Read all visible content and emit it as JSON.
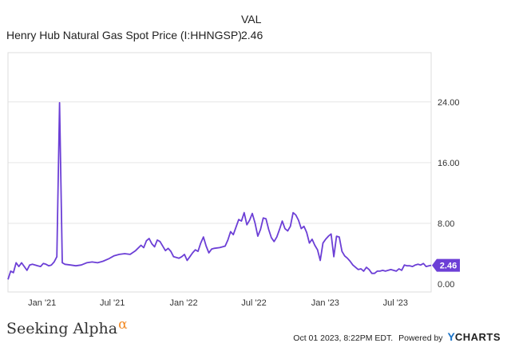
{
  "header": {
    "value_column_label": "VAL",
    "series_name": "Henry Hub Natural Gas Spot Price (I:HHNGSP)",
    "series_value": "2.46"
  },
  "footer": {
    "brand_left": "Seeking Alpha",
    "brand_left_symbol": "α",
    "timestamp": "Oct 01 2023, 8:22PM EDT.",
    "powered_by": "Powered by",
    "brand_right_mark": "Y",
    "brand_right": "CHARTS"
  },
  "colors": {
    "series": "#6c3fd6",
    "grid": "#e6e6e6",
    "plot_border": "#dddddd",
    "axis_text": "#333333",
    "last_value_tag": "#6c3fd6",
    "alpha_mark": "#f28c28",
    "ycharts_mark": "#1a73c8"
  },
  "chart_data": {
    "type": "line",
    "title": "",
    "ylabel": "",
    "xlabel": "",
    "ylim": [
      -1.05,
      30.5
    ],
    "xlim": [
      "2020-10-05",
      "2023-10-01"
    ],
    "yticks": [
      {
        "value": 0,
        "label": "0.00"
      },
      {
        "value": 8,
        "label": "8.00"
      },
      {
        "value": 16,
        "label": "16.00"
      },
      {
        "value": 24,
        "label": "24.00"
      }
    ],
    "xticks": [
      {
        "date": "2021-01-01",
        "label": "Jan '21"
      },
      {
        "date": "2021-07-01",
        "label": "Jul '21"
      },
      {
        "date": "2022-01-01",
        "label": "Jan '22"
      },
      {
        "date": "2022-07-01",
        "label": "Jul '22"
      },
      {
        "date": "2023-01-01",
        "label": "Jan '23"
      },
      {
        "date": "2023-07-01",
        "label": "Jul '23"
      }
    ],
    "grid": "horizontal",
    "last_value_label": "2.46",
    "series": [
      {
        "name": "Henry Hub Natural Gas Spot Price (I:HHNGSP)",
        "points": [
          [
            "2020-10-05",
            0.6
          ],
          [
            "2020-10-12",
            1.7
          ],
          [
            "2020-10-19",
            1.5
          ],
          [
            "2020-10-26",
            2.8
          ],
          [
            "2020-11-02",
            2.3
          ],
          [
            "2020-11-09",
            2.8
          ],
          [
            "2020-11-16",
            2.3
          ],
          [
            "2020-11-23",
            1.8
          ],
          [
            "2020-11-30",
            2.5
          ],
          [
            "2020-12-07",
            2.6
          ],
          [
            "2020-12-14",
            2.5
          ],
          [
            "2020-12-21",
            2.4
          ],
          [
            "2020-12-28",
            2.3
          ],
          [
            "2021-01-04",
            2.7
          ],
          [
            "2021-01-11",
            2.6
          ],
          [
            "2021-01-18",
            2.4
          ],
          [
            "2021-01-25",
            2.5
          ],
          [
            "2021-02-01",
            2.9
          ],
          [
            "2021-02-08",
            3.6
          ],
          [
            "2021-02-15",
            23.9
          ],
          [
            "2021-02-22",
            2.8
          ],
          [
            "2021-03-01",
            2.6
          ],
          [
            "2021-03-15",
            2.5
          ],
          [
            "2021-03-29",
            2.4
          ],
          [
            "2021-04-12",
            2.5
          ],
          [
            "2021-04-26",
            2.8
          ],
          [
            "2021-05-10",
            2.9
          ],
          [
            "2021-05-24",
            2.8
          ],
          [
            "2021-06-07",
            3.0
          ],
          [
            "2021-06-21",
            3.3
          ],
          [
            "2021-07-05",
            3.7
          ],
          [
            "2021-07-19",
            3.9
          ],
          [
            "2021-08-02",
            4.0
          ],
          [
            "2021-08-16",
            3.9
          ],
          [
            "2021-08-30",
            4.4
          ],
          [
            "2021-09-13",
            5.1
          ],
          [
            "2021-09-20",
            4.8
          ],
          [
            "2021-09-27",
            5.7
          ],
          [
            "2021-10-04",
            6.0
          ],
          [
            "2021-10-11",
            5.3
          ],
          [
            "2021-10-18",
            4.9
          ],
          [
            "2021-10-25",
            5.8
          ],
          [
            "2021-11-01",
            5.6
          ],
          [
            "2021-11-15",
            4.4
          ],
          [
            "2021-11-22",
            4.7
          ],
          [
            "2021-11-29",
            4.3
          ],
          [
            "2021-12-06",
            3.6
          ],
          [
            "2021-12-20",
            3.4
          ],
          [
            "2021-12-27",
            3.6
          ],
          [
            "2022-01-03",
            3.9
          ],
          [
            "2022-01-10",
            3.1
          ],
          [
            "2022-01-17",
            3.6
          ],
          [
            "2022-01-24",
            4.1
          ],
          [
            "2022-01-31",
            4.5
          ],
          [
            "2022-02-07",
            4.3
          ],
          [
            "2022-02-14",
            5.4
          ],
          [
            "2022-02-21",
            6.2
          ],
          [
            "2022-02-28",
            5.0
          ],
          [
            "2022-03-07",
            4.1
          ],
          [
            "2022-03-14",
            4.6
          ],
          [
            "2022-03-21",
            4.7
          ],
          [
            "2022-04-04",
            4.8
          ],
          [
            "2022-04-18",
            5.0
          ],
          [
            "2022-04-25",
            5.8
          ],
          [
            "2022-05-02",
            6.9
          ],
          [
            "2022-05-09",
            6.5
          ],
          [
            "2022-05-16",
            7.5
          ],
          [
            "2022-05-23",
            8.5
          ],
          [
            "2022-05-30",
            8.3
          ],
          [
            "2022-06-06",
            9.4
          ],
          [
            "2022-06-13",
            7.8
          ],
          [
            "2022-06-20",
            8.4
          ],
          [
            "2022-06-27",
            9.3
          ],
          [
            "2022-07-04",
            8.0
          ],
          [
            "2022-07-11",
            6.3
          ],
          [
            "2022-07-18",
            7.2
          ],
          [
            "2022-07-25",
            8.7
          ],
          [
            "2022-08-01",
            8.6
          ],
          [
            "2022-08-08",
            7.2
          ],
          [
            "2022-08-15",
            6.1
          ],
          [
            "2022-08-22",
            5.6
          ],
          [
            "2022-08-29",
            6.2
          ],
          [
            "2022-09-05",
            7.2
          ],
          [
            "2022-09-12",
            8.3
          ],
          [
            "2022-09-19",
            7.3
          ],
          [
            "2022-09-26",
            7.0
          ],
          [
            "2022-10-03",
            7.6
          ],
          [
            "2022-10-10",
            9.4
          ],
          [
            "2022-10-17",
            9.1
          ],
          [
            "2022-10-24",
            8.4
          ],
          [
            "2022-10-31",
            7.3
          ],
          [
            "2022-11-07",
            7.6
          ],
          [
            "2022-11-14",
            6.8
          ],
          [
            "2022-11-21",
            5.4
          ],
          [
            "2022-11-28",
            5.9
          ],
          [
            "2022-12-05",
            5.1
          ],
          [
            "2022-12-12",
            4.5
          ],
          [
            "2022-12-19",
            3.1
          ],
          [
            "2022-12-26",
            5.4
          ],
          [
            "2023-01-02",
            5.9
          ],
          [
            "2023-01-09",
            6.3
          ],
          [
            "2023-01-16",
            6.6
          ],
          [
            "2023-01-23",
            3.6
          ],
          [
            "2023-01-30",
            6.3
          ],
          [
            "2023-02-06",
            6.2
          ],
          [
            "2023-02-13",
            4.3
          ],
          [
            "2023-02-20",
            3.7
          ],
          [
            "2023-02-27",
            3.4
          ],
          [
            "2023-03-06",
            3.0
          ],
          [
            "2023-03-13",
            2.5
          ],
          [
            "2023-03-20",
            2.2
          ],
          [
            "2023-03-27",
            1.9
          ],
          [
            "2023-04-03",
            2.0
          ],
          [
            "2023-04-10",
            1.7
          ],
          [
            "2023-04-17",
            2.2
          ],
          [
            "2023-04-24",
            1.9
          ],
          [
            "2023-05-01",
            1.4
          ],
          [
            "2023-05-08",
            1.4
          ],
          [
            "2023-05-15",
            1.7
          ],
          [
            "2023-05-22",
            1.7
          ],
          [
            "2023-05-29",
            1.8
          ],
          [
            "2023-06-05",
            1.7
          ],
          [
            "2023-06-12",
            1.8
          ],
          [
            "2023-06-19",
            1.9
          ],
          [
            "2023-06-26",
            1.8
          ],
          [
            "2023-07-03",
            1.7
          ],
          [
            "2023-07-10",
            2.0
          ],
          [
            "2023-07-17",
            1.8
          ],
          [
            "2023-07-24",
            2.5
          ],
          [
            "2023-07-31",
            2.4
          ],
          [
            "2023-08-07",
            2.4
          ],
          [
            "2023-08-14",
            2.3
          ],
          [
            "2023-08-21",
            2.5
          ],
          [
            "2023-08-28",
            2.6
          ],
          [
            "2023-09-04",
            2.5
          ],
          [
            "2023-09-11",
            2.7
          ],
          [
            "2023-09-18",
            2.3
          ],
          [
            "2023-09-25",
            2.4
          ],
          [
            "2023-10-01",
            2.46
          ]
        ]
      }
    ]
  }
}
